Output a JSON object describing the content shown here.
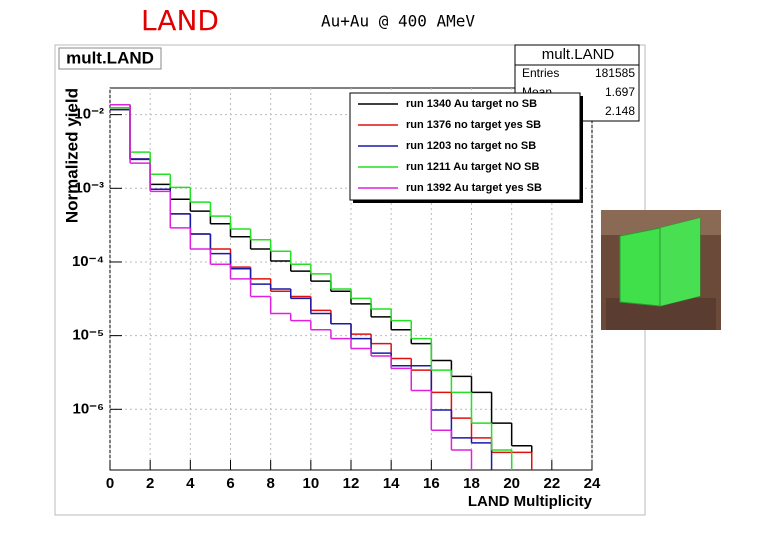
{
  "slide_title": "LAND",
  "slide_subtitle": "Au+Au  @ 400 AMeV",
  "chart_data": {
    "type": "histogram",
    "title": "mult.LAND",
    "x_label": "LAND Multiplicity",
    "y_label": "Normalized yield",
    "log_y": true,
    "grid": true,
    "bins": [
      0,
      1,
      2,
      3,
      4,
      5,
      6,
      7,
      8,
      9,
      10,
      11,
      12,
      13,
      14,
      15,
      16,
      17,
      18,
      19,
      20,
      21,
      22,
      23,
      24
    ],
    "xlim": [
      0,
      24
    ],
    "xticks": [
      0,
      2,
      4,
      6,
      8,
      10,
      12,
      14,
      16,
      18,
      20,
      22,
      24
    ],
    "ylim": [
      1.5e-07,
      0.023
    ],
    "yticks": [
      {
        "value": 1e-06,
        "label": "10⁻⁶"
      },
      {
        "value": 1e-05,
        "label": "10⁻⁵"
      },
      {
        "value": 0.0001,
        "label": "10⁻⁴"
      },
      {
        "value": 0.001,
        "label": "10⁻³"
      },
      {
        "value": 0.01,
        "label": "10⁻²"
      }
    ],
    "series": [
      {
        "name": "run 1340 Au target no SB",
        "color": "#000000",
        "values": [
          0.0136,
          0.00247,
          0.00113,
          0.00071,
          0.00049,
          0.00033,
          0.00022,
          0.00015,
          0.000103,
          7.5e-05,
          5.5e-05,
          4e-05,
          2.7e-05,
          1.8e-05,
          1.2e-05,
          7.8e-06,
          4.6e-06,
          2.8e-06,
          1.7e-06,
          6.5e-07,
          3.2e-07,
          null,
          null,
          null
        ]
      },
      {
        "name": "run 1376 no target yes SB",
        "color": "#e01010",
        "values": [
          0.0117,
          0.0025,
          0.00097,
          0.00045,
          0.00024,
          0.00015,
          8.5e-05,
          5.9e-05,
          4e-05,
          3.4e-05,
          2.2e-05,
          1.45e-05,
          1.05e-05,
          7.8e-06,
          4.9e-06,
          3.4e-06,
          1.7e-06,
          7.6e-07,
          4.1e-07,
          2.6e-07,
          2.6e-07,
          null,
          null,
          null
        ]
      },
      {
        "name": "run 1203 no target no SB",
        "color": "#1a1aa8",
        "values": [
          0.0117,
          0.0025,
          0.00097,
          0.00045,
          0.00024,
          0.00013,
          8.1e-05,
          5e-05,
          4.3e-05,
          3.2e-05,
          2e-05,
          1.45e-05,
          9.1e-06,
          5.8e-06,
          3.9e-06,
          3.9e-06,
          9.8e-07,
          4.1e-07,
          3.5e-07,
          null,
          null,
          null,
          null,
          null
        ]
      },
      {
        "name": "run 1211 Au target NO SB",
        "color": "#22e022",
        "values": [
          0.0124,
          0.0031,
          0.00155,
          0.00103,
          0.00065,
          0.00042,
          0.00028,
          0.0002,
          0.00014,
          9.3e-05,
          6.9e-05,
          4.3e-05,
          3.2e-05,
          2.3e-05,
          1.6e-05,
          9.1e-06,
          3.4e-06,
          1.7e-06,
          6.5e-07,
          2.8e-07,
          null,
          null,
          null,
          null
        ]
      },
      {
        "name": "run 1392 Au target yes SB",
        "color": "#e020e0",
        "values": [
          0.0136,
          0.0022,
          0.00091,
          0.00029,
          0.00015,
          9.3e-05,
          5.9e-05,
          3.4e-05,
          2e-05,
          1.6e-05,
          1.2e-05,
          9.1e-06,
          6.7e-06,
          5.3e-06,
          3.6e-06,
          1.8e-06,
          5.2e-07,
          2.8e-07,
          null,
          null,
          null,
          null,
          null,
          null
        ]
      }
    ],
    "stats": {
      "title": "mult.LAND",
      "entries_label": "Entries",
      "entries": "181585",
      "mean_label": "Mean",
      "mean": "1.697",
      "rms": "2.148"
    }
  }
}
